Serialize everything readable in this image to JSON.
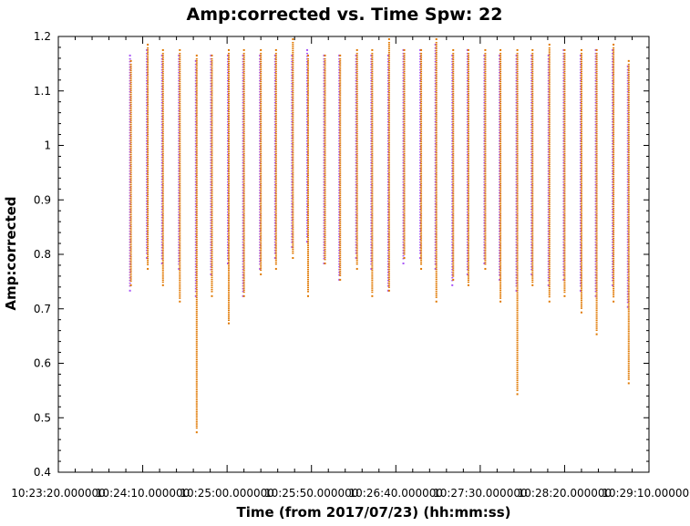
{
  "chart_data": {
    "type": "scatter",
    "title": "Amp:corrected vs. Time Spw: 22",
    "xlabel": "Time (from 2017/07/23) (hh:mm:ss)",
    "ylabel": "Amp:corrected",
    "xlim": [
      "10:23:20",
      "10:29:10"
    ],
    "ylim": [
      0.4,
      1.2
    ],
    "grid": false,
    "legend": "none",
    "x_ticks": [
      "10:23:20.000000",
      "10:24:10.000000",
      "10:25:00.000000",
      "10:25:50.000000",
      "10:26:40.000000",
      "10:27:30.000000",
      "10:28:20.000000",
      "10:29:10.000000"
    ],
    "y_ticks": [
      "0.4",
      "0.5",
      "0.6",
      "0.7",
      "0.8",
      "0.9",
      "1",
      "1.1",
      "1.2"
    ],
    "series": [
      {
        "color": "#a855f7",
        "x": [
          "10:24:03",
          "10:24:13",
          "10:24:22",
          "10:24:32",
          "10:24:42",
          "10:24:51",
          "10:25:01",
          "10:25:10",
          "10:25:20",
          "10:25:29",
          "10:25:39",
          "10:25:48",
          "10:25:58",
          "10:26:07",
          "10:26:17",
          "10:26:26",
          "10:26:36",
          "10:26:45",
          "10:26:55",
          "10:27:04",
          "10:27:14",
          "10:27:23",
          "10:27:33",
          "10:27:42",
          "10:27:52",
          "10:28:01",
          "10:28:11",
          "10:28:20",
          "10:28:30",
          "10:28:39",
          "10:28:49",
          "10:28:58"
        ],
        "y_low": [
          0.74,
          0.8,
          0.79,
          0.78,
          0.73,
          0.77,
          0.79,
          0.73,
          0.78,
          0.8,
          0.82,
          0.83,
          0.79,
          0.76,
          0.8,
          0.78,
          0.74,
          0.79,
          0.8,
          0.78,
          0.75,
          0.77,
          0.79,
          0.76,
          0.74,
          0.77,
          0.75,
          0.76,
          0.74,
          0.73,
          0.75,
          0.71
        ],
        "y_high": [
          1.16,
          1.17,
          1.16,
          1.16,
          1.15,
          1.16,
          1.16,
          1.16,
          1.16,
          1.16,
          1.16,
          1.17,
          1.16,
          1.16,
          1.16,
          1.16,
          1.16,
          1.17,
          1.17,
          1.18,
          1.16,
          1.17,
          1.16,
          1.16,
          1.16,
          1.16,
          1.16,
          1.17,
          1.16,
          1.17,
          1.17,
          1.14
        ]
      },
      {
        "color": "#e07800",
        "x": [
          "10:24:03",
          "10:24:13",
          "10:24:22",
          "10:24:32",
          "10:24:42",
          "10:24:51",
          "10:25:01",
          "10:25:10",
          "10:25:20",
          "10:25:29",
          "10:25:39",
          "10:25:48",
          "10:25:58",
          "10:26:07",
          "10:26:17",
          "10:26:26",
          "10:26:36",
          "10:26:45",
          "10:26:55",
          "10:27:04",
          "10:27:14",
          "10:27:23",
          "10:27:33",
          "10:27:42",
          "10:27:52",
          "10:28:01",
          "10:28:11",
          "10:28:20",
          "10:28:30",
          "10:28:39",
          "10:28:49",
          "10:28:58"
        ],
        "y_low": [
          0.75,
          0.78,
          0.75,
          0.72,
          0.48,
          0.73,
          0.68,
          0.73,
          0.77,
          0.78,
          0.8,
          0.73,
          0.79,
          0.76,
          0.78,
          0.73,
          0.74,
          0.8,
          0.78,
          0.72,
          0.76,
          0.75,
          0.78,
          0.72,
          0.55,
          0.75,
          0.72,
          0.73,
          0.7,
          0.66,
          0.72,
          0.57
        ],
        "y_high": [
          1.15,
          1.18,
          1.17,
          1.17,
          1.16,
          1.16,
          1.17,
          1.17,
          1.17,
          1.17,
          1.19,
          1.16,
          1.16,
          1.16,
          1.17,
          1.17,
          1.19,
          1.17,
          1.17,
          1.19,
          1.17,
          1.17,
          1.17,
          1.17,
          1.17,
          1.17,
          1.18,
          1.17,
          1.17,
          1.17,
          1.18,
          1.15
        ]
      }
    ]
  }
}
